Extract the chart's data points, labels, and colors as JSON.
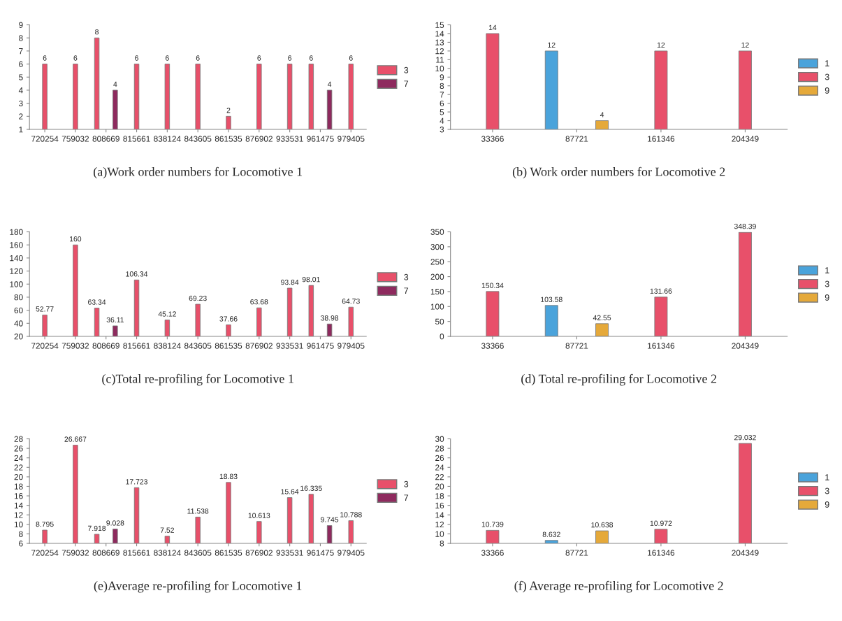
{
  "chart_data": [
    {
      "type": "bar",
      "title": "(a)Work order numbers for Locomotive 1",
      "categories": [
        "720254",
        "759032",
        "808669",
        "815661",
        "838124",
        "843605",
        "861535",
        "876902",
        "933531",
        "961475",
        "979405"
      ],
      "series": [
        {
          "name": "3",
          "color": "#e8506a",
          "values": [
            6,
            6,
            8,
            6,
            6,
            6,
            2,
            6,
            6,
            6,
            6
          ]
        },
        {
          "name": "7",
          "color": "#8e2a5e",
          "values": [
            null,
            null,
            4,
            null,
            null,
            null,
            null,
            null,
            null,
            4,
            null
          ]
        }
      ],
      "ylim": [
        1,
        9
      ],
      "yticks": [
        1,
        2,
        3,
        4,
        5,
        6,
        7,
        8,
        9
      ],
      "data_labels": true,
      "legend": "right",
      "grid": false
    },
    {
      "type": "bar",
      "title": "(b) Work order numbers for Locomotive 2",
      "categories": [
        "33366",
        "87721",
        "161346",
        "204349"
      ],
      "series": [
        {
          "name": "1",
          "color": "#4aa3db",
          "values": [
            null,
            12,
            null,
            null
          ]
        },
        {
          "name": "3",
          "color": "#e8506a",
          "values": [
            14,
            null,
            12,
            12
          ]
        },
        {
          "name": "9",
          "color": "#e5a93a",
          "values": [
            null,
            4,
            null,
            null
          ]
        }
      ],
      "ylim": [
        3,
        15
      ],
      "yticks": [
        3,
        4,
        5,
        6,
        7,
        8,
        9,
        10,
        11,
        12,
        13,
        14,
        15
      ],
      "data_labels": true,
      "legend": "right",
      "grid": false
    },
    {
      "type": "bar",
      "title": "(c)Total re-profiling for Locomotive 1",
      "categories": [
        "720254",
        "759032",
        "808669",
        "815661",
        "838124",
        "843605",
        "861535",
        "876902",
        "933531",
        "961475",
        "979405"
      ],
      "series": [
        {
          "name": "3",
          "color": "#e8506a",
          "values": [
            52.77,
            160,
            63.34,
            106.34,
            45.12,
            69.23,
            37.66,
            63.68,
            93.84,
            98.01,
            64.73
          ]
        },
        {
          "name": "7",
          "color": "#8e2a5e",
          "values": [
            null,
            null,
            36.11,
            null,
            null,
            null,
            null,
            null,
            null,
            38.98,
            null
          ]
        }
      ],
      "ylim": [
        20,
        180
      ],
      "yticks": [
        20,
        40,
        60,
        80,
        100,
        120,
        140,
        160,
        180
      ],
      "data_labels": true,
      "legend": "right",
      "grid": false
    },
    {
      "type": "bar",
      "title": "(d) Total re-profiling for Locomotive 2",
      "categories": [
        "33366",
        "87721",
        "161346",
        "204349"
      ],
      "series": [
        {
          "name": "1",
          "color": "#4aa3db",
          "values": [
            null,
            103.58,
            null,
            null
          ]
        },
        {
          "name": "3",
          "color": "#e8506a",
          "values": [
            150.34,
            null,
            131.66,
            348.39
          ]
        },
        {
          "name": "9",
          "color": "#e5a93a",
          "values": [
            null,
            42.55,
            null,
            null
          ]
        }
      ],
      "ylim": [
        0,
        350
      ],
      "yticks": [
        0,
        50,
        100,
        150,
        200,
        250,
        300,
        350
      ],
      "data_labels": true,
      "legend": "right",
      "grid": false
    },
    {
      "type": "bar",
      "title": "(e)Average re-profiling for Locomotive 1",
      "categories": [
        "720254",
        "759032",
        "808669",
        "815661",
        "838124",
        "843605",
        "861535",
        "876902",
        "933531",
        "961475",
        "979405"
      ],
      "series": [
        {
          "name": "3",
          "color": "#e8506a",
          "values": [
            8.795,
            26.667,
            7.918,
            17.723,
            7.52,
            11.538,
            18.83,
            10.613,
            15.64,
            16.335,
            10.788
          ]
        },
        {
          "name": "7",
          "color": "#8e2a5e",
          "values": [
            null,
            null,
            9.028,
            null,
            null,
            null,
            null,
            null,
            null,
            9.745,
            null
          ]
        }
      ],
      "ylim": [
        6,
        28
      ],
      "yticks": [
        6,
        8,
        10,
        12,
        14,
        16,
        18,
        20,
        22,
        24,
        26,
        28
      ],
      "data_labels": true,
      "legend": "right",
      "grid": false
    },
    {
      "type": "bar",
      "title": "(f) Average re-profiling for Locomotive 2",
      "categories": [
        "33366",
        "87721",
        "161346",
        "204349"
      ],
      "series": [
        {
          "name": "1",
          "color": "#4aa3db",
          "values": [
            null,
            8.632,
            null,
            null
          ]
        },
        {
          "name": "3",
          "color": "#e8506a",
          "values": [
            10.739,
            null,
            10.972,
            29.032
          ]
        },
        {
          "name": "9",
          "color": "#e5a93a",
          "values": [
            null,
            10.638,
            null,
            null
          ]
        }
      ],
      "ylim": [
        8,
        30
      ],
      "yticks": [
        8,
        10,
        12,
        14,
        16,
        18,
        20,
        22,
        24,
        26,
        28,
        30
      ],
      "data_labels": true,
      "legend": "right",
      "grid": false
    }
  ]
}
